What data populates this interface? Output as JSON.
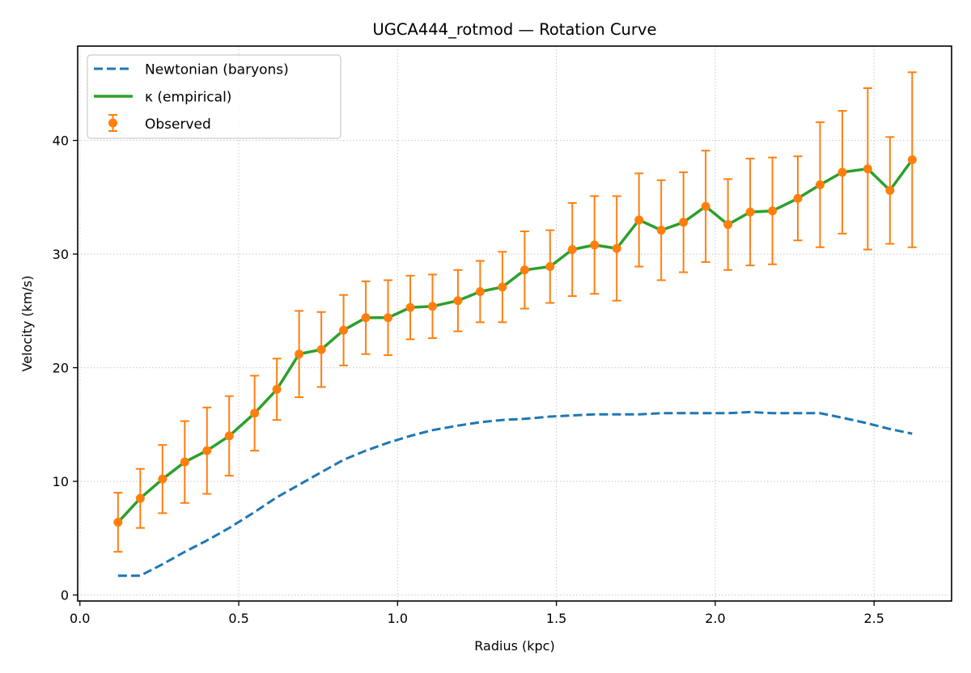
{
  "chart_data": {
    "type": "line",
    "title": "UGCA444_rotmod — Rotation Curve",
    "xlabel": "Radius (kpc)",
    "ylabel": "Velocity (km/s)",
    "xlim": [
      -0.007,
      2.744
    ],
    "ylim": [
      -0.53,
      48.3
    ],
    "xticks": [
      0.0,
      0.5,
      1.0,
      1.5,
      2.0,
      2.5
    ],
    "xtick_labels": [
      "0.0",
      "0.5",
      "1.0",
      "1.5",
      "2.0",
      "2.5"
    ],
    "yticks": [
      0,
      10,
      20,
      30,
      40
    ],
    "ytick_labels": [
      "0",
      "10",
      "20",
      "30",
      "40"
    ],
    "grid": true,
    "legend_position": "top-left",
    "x": [
      0.12,
      0.19,
      0.26,
      0.33,
      0.4,
      0.47,
      0.55,
      0.62,
      0.69,
      0.76,
      0.83,
      0.9,
      0.97,
      1.04,
      1.11,
      1.19,
      1.26,
      1.33,
      1.4,
      1.48,
      1.55,
      1.62,
      1.69,
      1.76,
      1.83,
      1.9,
      1.97,
      2.04,
      2.11,
      2.18,
      2.26,
      2.33,
      2.4,
      2.48,
      2.55,
      2.62
    ],
    "series": [
      {
        "name": "Newtonian (baryons)",
        "type": "line",
        "style": "dashed",
        "color": "#1f77b4",
        "values": [
          1.7,
          1.7,
          2.7,
          3.8,
          4.8,
          5.9,
          7.3,
          8.6,
          9.7,
          10.8,
          11.9,
          12.7,
          13.4,
          14.0,
          14.5,
          14.9,
          15.2,
          15.4,
          15.5,
          15.7,
          15.8,
          15.9,
          15.9,
          15.9,
          16.0,
          16.0,
          16.0,
          16.0,
          16.1,
          16.0,
          16.0,
          16.0,
          15.6,
          15.1,
          14.6,
          14.2
        ]
      },
      {
        "name": "κ (empirical)",
        "type": "line",
        "style": "solid",
        "color": "#2ca02c",
        "values": [
          6.4,
          8.5,
          10.2,
          11.7,
          12.7,
          14.0,
          16.0,
          18.1,
          21.2,
          21.6,
          23.3,
          24.4,
          24.4,
          25.3,
          25.4,
          25.9,
          26.7,
          27.1,
          28.6,
          28.9,
          30.4,
          30.8,
          30.5,
          33.0,
          32.1,
          32.8,
          34.2,
          32.6,
          33.7,
          33.8,
          34.9,
          36.1,
          37.2,
          37.5,
          35.6,
          38.3
        ]
      },
      {
        "name": "Observed",
        "type": "errorbar",
        "color": "#ff7f0e",
        "values": [
          6.4,
          8.5,
          10.2,
          11.7,
          12.7,
          14.0,
          16.0,
          18.1,
          21.2,
          21.6,
          23.3,
          24.4,
          24.4,
          25.3,
          25.4,
          25.9,
          26.7,
          27.1,
          28.6,
          28.9,
          30.4,
          30.8,
          30.5,
          33.0,
          32.1,
          32.8,
          34.2,
          32.6,
          33.7,
          33.8,
          34.9,
          36.1,
          37.2,
          37.5,
          35.6,
          38.3
        ],
        "errors": [
          2.6,
          2.6,
          3.0,
          3.6,
          3.8,
          3.5,
          3.3,
          2.7,
          3.8,
          3.3,
          3.1,
          3.2,
          3.3,
          2.8,
          2.8,
          2.7,
          2.7,
          3.1,
          3.4,
          3.2,
          4.1,
          4.3,
          4.6,
          4.1,
          4.4,
          4.4,
          4.9,
          4.0,
          4.7,
          4.7,
          3.7,
          5.5,
          5.4,
          7.1,
          4.7,
          7.7
        ]
      }
    ],
    "legend": [
      {
        "label": "Newtonian (baryons)",
        "marker": "dashed-line",
        "color": "#1f77b4"
      },
      {
        "label": "κ (empirical)",
        "marker": "solid-line",
        "color": "#2ca02c"
      },
      {
        "label": "Observed",
        "marker": "errorbar-dot",
        "color": "#ff7f0e"
      }
    ]
  }
}
